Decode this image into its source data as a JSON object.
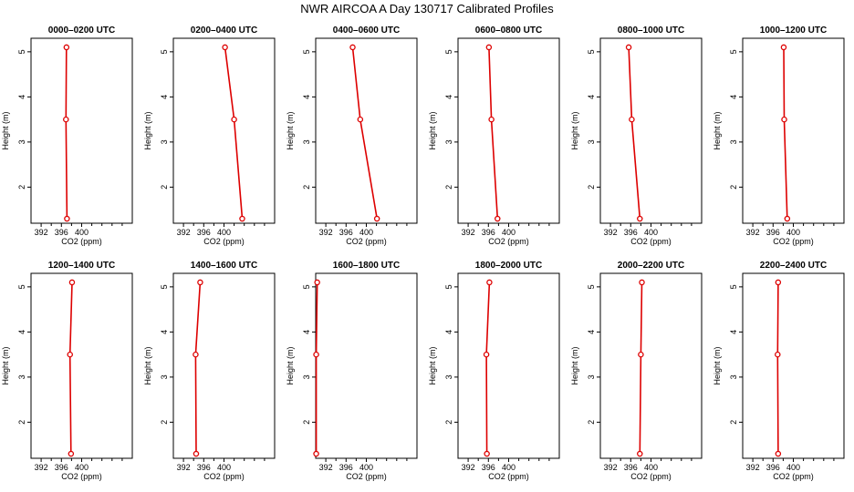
{
  "title": "NWR AIRCOA A  Day 130717  Calibrated Profiles",
  "colors": {
    "series": "#dd0000",
    "axis": "#000000",
    "background": "#ffffff"
  },
  "chart_data": [
    {
      "type": "line",
      "title": "0000–0200 UTC",
      "xlabel": "CO2 (ppm)",
      "ylabel": "Height (m)",
      "xlim": [
        390,
        410
      ],
      "ylim": [
        1.2,
        5.3
      ],
      "xticks": [
        392,
        396,
        400
      ],
      "yticks": [
        2,
        3,
        4,
        5
      ],
      "grid": false,
      "series": [
        {
          "x": [
            397.0,
            396.9,
            397.1
          ],
          "y": [
            5.1,
            3.5,
            1.3
          ]
        }
      ]
    },
    {
      "type": "line",
      "title": "0200–0400 UTC",
      "xlabel": "CO2 (ppm)",
      "ylabel": "Height (m)",
      "xlim": [
        390,
        410
      ],
      "ylim": [
        1.2,
        5.3
      ],
      "xticks": [
        392,
        396,
        400
      ],
      "yticks": [
        2,
        3,
        4,
        5
      ],
      "grid": false,
      "series": [
        {
          "x": [
            400.2,
            402.0,
            403.6
          ],
          "y": [
            5.1,
            3.5,
            1.3
          ]
        }
      ]
    },
    {
      "type": "line",
      "title": "0400–0600 UTC",
      "xlabel": "CO2 (ppm)",
      "ylabel": "Height (m)",
      "xlim": [
        390,
        410
      ],
      "ylim": [
        1.2,
        5.3
      ],
      "xticks": [
        392,
        396,
        400
      ],
      "yticks": [
        2,
        3,
        4,
        5
      ],
      "grid": false,
      "series": [
        {
          "x": [
            397.3,
            398.8,
            402.1
          ],
          "y": [
            5.1,
            3.5,
            1.3
          ]
        }
      ]
    },
    {
      "type": "line",
      "title": "0600–0800 UTC",
      "xlabel": "CO2 (ppm)",
      "ylabel": "Height (m)",
      "xlim": [
        390,
        410
      ],
      "ylim": [
        1.2,
        5.3
      ],
      "xticks": [
        392,
        396,
        400
      ],
      "yticks": [
        2,
        3,
        4,
        5
      ],
      "grid": false,
      "series": [
        {
          "x": [
            396.1,
            396.6,
            397.8
          ],
          "y": [
            5.1,
            3.5,
            1.3
          ]
        }
      ]
    },
    {
      "type": "line",
      "title": "0800–1000 UTC",
      "xlabel": "CO2 (ppm)",
      "ylabel": "Height (m)",
      "xlim": [
        390,
        410
      ],
      "ylim": [
        1.2,
        5.3
      ],
      "xticks": [
        392,
        396,
        400
      ],
      "yticks": [
        2,
        3,
        4,
        5
      ],
      "grid": false,
      "series": [
        {
          "x": [
            395.6,
            396.2,
            397.8
          ],
          "y": [
            5.1,
            3.5,
            1.3
          ]
        }
      ]
    },
    {
      "type": "line",
      "title": "1000–1200 UTC",
      "xlabel": "CO2 (ppm)",
      "ylabel": "Height (m)",
      "xlim": [
        390,
        410
      ],
      "ylim": [
        1.2,
        5.3
      ],
      "xticks": [
        392,
        396,
        400
      ],
      "yticks": [
        2,
        3,
        4,
        5
      ],
      "grid": false,
      "series": [
        {
          "x": [
            398.1,
            398.2,
            398.8
          ],
          "y": [
            5.1,
            3.5,
            1.3
          ]
        }
      ]
    },
    {
      "type": "line",
      "title": "1200–1400 UTC",
      "xlabel": "CO2 (ppm)",
      "ylabel": "Height (m)",
      "xlim": [
        390,
        410
      ],
      "ylim": [
        1.2,
        5.3
      ],
      "xticks": [
        392,
        396,
        400
      ],
      "yticks": [
        2,
        3,
        4,
        5
      ],
      "grid": false,
      "series": [
        {
          "x": [
            398.1,
            397.7,
            397.9
          ],
          "y": [
            5.1,
            3.5,
            1.3
          ]
        }
      ]
    },
    {
      "type": "line",
      "title": "1400–1600 UTC",
      "xlabel": "CO2 (ppm)",
      "ylabel": "Height (m)",
      "xlim": [
        390,
        410
      ],
      "ylim": [
        1.2,
        5.3
      ],
      "xticks": [
        392,
        396,
        400
      ],
      "yticks": [
        2,
        3,
        4,
        5
      ],
      "grid": false,
      "series": [
        {
          "x": [
            395.3,
            394.4,
            394.5
          ],
          "y": [
            5.1,
            3.5,
            1.3
          ]
        }
      ]
    },
    {
      "type": "line",
      "title": "1600–1800 UTC",
      "xlabel": "CO2 (ppm)",
      "ylabel": "Height (m)",
      "xlim": [
        390,
        410
      ],
      "ylim": [
        1.2,
        5.3
      ],
      "xticks": [
        392,
        396,
        400
      ],
      "yticks": [
        2,
        3,
        4,
        5
      ],
      "grid": false,
      "series": [
        {
          "x": [
            390.3,
            390.1,
            390.1
          ],
          "y": [
            5.1,
            3.5,
            1.3
          ]
        }
      ]
    },
    {
      "type": "line",
      "title": "1800–2000 UTC",
      "xlabel": "CO2 (ppm)",
      "ylabel": "Height (m)",
      "xlim": [
        390,
        410
      ],
      "ylim": [
        1.2,
        5.3
      ],
      "xticks": [
        392,
        396,
        400
      ],
      "yticks": [
        2,
        3,
        4,
        5
      ],
      "grid": false,
      "series": [
        {
          "x": [
            396.2,
            395.6,
            395.7
          ],
          "y": [
            5.1,
            3.5,
            1.3
          ]
        }
      ]
    },
    {
      "type": "line",
      "title": "2000–2200 UTC",
      "xlabel": "CO2 (ppm)",
      "ylabel": "Height (m)",
      "xlim": [
        390,
        410
      ],
      "ylim": [
        1.2,
        5.3
      ],
      "xticks": [
        392,
        396,
        400
      ],
      "yticks": [
        2,
        3,
        4,
        5
      ],
      "grid": false,
      "series": [
        {
          "x": [
            398.2,
            398.0,
            397.8
          ],
          "y": [
            5.1,
            3.5,
            1.3
          ]
        }
      ]
    },
    {
      "type": "line",
      "title": "2200–2400 UTC",
      "xlabel": "CO2 (ppm)",
      "ylabel": "Height (m)",
      "xlim": [
        390,
        410
      ],
      "ylim": [
        1.2,
        5.3
      ],
      "xticks": [
        392,
        396,
        400
      ],
      "yticks": [
        2,
        3,
        4,
        5
      ],
      "grid": false,
      "series": [
        {
          "x": [
            397.0,
            396.9,
            397.0
          ],
          "y": [
            5.1,
            3.5,
            1.3
          ]
        }
      ]
    }
  ]
}
